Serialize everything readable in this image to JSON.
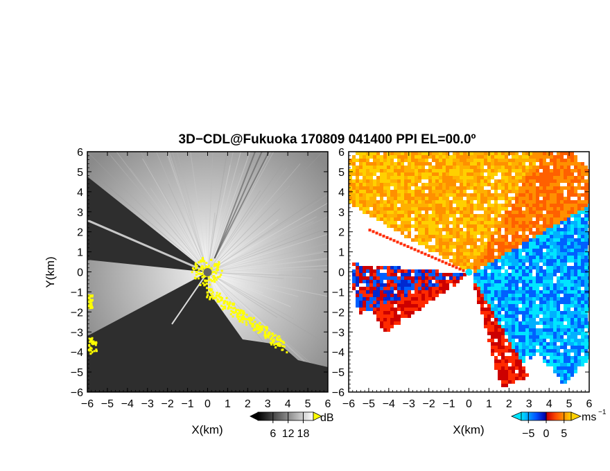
{
  "title": "3D−CDL@Fukuoka 170809 041400 PPI EL=00.0º",
  "chart_data": [
    {
      "type": "heatmap",
      "name": "reflectivity-panel",
      "xlabel": "X(km)",
      "ylabel": "Y(km)",
      "xlim": [
        -6,
        6
      ],
      "ylim": [
        -6,
        6
      ],
      "xticks": [
        "−6",
        "−5",
        "−4",
        "−3",
        "−2",
        "−1",
        "0",
        "1",
        "2",
        "3",
        "4",
        "5",
        "6"
      ],
      "yticks": [
        "−6",
        "−5",
        "−4",
        "−3",
        "−2",
        "−1",
        "0",
        "1",
        "2",
        "3",
        "4",
        "5",
        "6"
      ],
      "colorbar": {
        "unit": "dB",
        "ticks": [
          "6",
          "12",
          "18"
        ],
        "tick_values": [
          6,
          12,
          18
        ],
        "range": [
          0,
          22
        ],
        "colors": [
          "#000000",
          "#ffffff"
        ],
        "over_color": "#ffff00"
      },
      "sector_edges_deg": [
        158,
        228
      ],
      "site": [
        0,
        0
      ]
    },
    {
      "type": "heatmap",
      "name": "velocity-panel",
      "xlabel": "X(km)",
      "ylabel": "",
      "xlim": [
        -6,
        6
      ],
      "ylim": [
        -6,
        6
      ],
      "xticks": [
        "−6",
        "−5",
        "−4",
        "−3",
        "−2",
        "−1",
        "0",
        "1",
        "2",
        "3",
        "4",
        "5",
        "6"
      ],
      "yticks": [
        "−6",
        "−5",
        "−4",
        "−3",
        "−2",
        "−1",
        "0",
        "1",
        "2",
        "3",
        "4",
        "5",
        "6"
      ],
      "colorbar": {
        "unit": "ms",
        "unit_sup": "−1",
        "ticks": [
          "−5",
          "0",
          "5"
        ],
        "tick_values": [
          -5,
          0,
          5
        ],
        "range": [
          -7,
          7
        ],
        "colors": [
          "#00e5ff",
          "#0050ff",
          "#0000aa",
          "#cc0000",
          "#ff5000",
          "#ffd000"
        ]
      },
      "sector_edges_deg": [
        158,
        228
      ],
      "site": [
        0,
        0
      ]
    }
  ]
}
